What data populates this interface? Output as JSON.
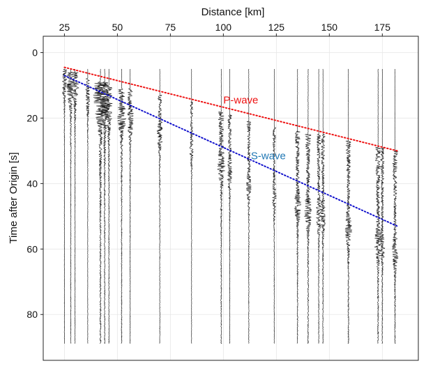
{
  "chart_data": {
    "type": "line",
    "xlabel": "Distance [km]",
    "ylabel": "Time after Origin [s]",
    "xlim": [
      15,
      192
    ],
    "ylim": [
      94,
      -5
    ],
    "x_axis_position": "top",
    "y_axis_inverted": true,
    "x_ticks": [
      25,
      50,
      75,
      100,
      125,
      150,
      175
    ],
    "y_ticks": [
      0,
      20,
      40,
      60,
      80
    ],
    "grid": true,
    "time_range": [
      5,
      89
    ],
    "stations": [
      {
        "distance": 25,
        "onset": 5,
        "amplitude": 2.5,
        "decay": 8
      },
      {
        "distance": 28,
        "onset": 6,
        "amplitude": 4.0,
        "decay": 9
      },
      {
        "distance": 30,
        "onset": 6,
        "amplitude": 3.5,
        "decay": 9
      },
      {
        "distance": 36,
        "onset": 8,
        "amplitude": 2.0,
        "decay": 10
      },
      {
        "distance": 42,
        "onset": 9,
        "amplitude": 7.5,
        "decay": 13
      },
      {
        "distance": 44,
        "onset": 9,
        "amplitude": 5.0,
        "decay": 12
      },
      {
        "distance": 46,
        "onset": 10,
        "amplitude": 4.0,
        "decay": 12
      },
      {
        "distance": 52,
        "onset": 11,
        "amplitude": 4.5,
        "decay": 12
      },
      {
        "distance": 56,
        "onset": 11,
        "amplitude": 3.5,
        "decay": 12
      },
      {
        "distance": 70,
        "onset": 13,
        "amplitude": 3.0,
        "decay": 14
      },
      {
        "distance": 85,
        "onset": 15,
        "amplitude": 2.0,
        "decay": 14
      },
      {
        "distance": 99,
        "onset": 18,
        "amplitude": 4.5,
        "decay": 15
      },
      {
        "distance": 103,
        "onset": 19,
        "amplitude": 3.0,
        "decay": 15
      },
      {
        "distance": 112,
        "onset": 21,
        "amplitude": 3.0,
        "decay": 16
      },
      {
        "distance": 124,
        "onset": 23,
        "amplitude": 2.5,
        "decay": 16
      },
      {
        "distance": 135,
        "onset": 24,
        "amplitude": 4.0,
        "decay": 18
      },
      {
        "distance": 140,
        "onset": 25,
        "amplitude": 4.5,
        "decay": 18
      },
      {
        "distance": 145,
        "onset": 25,
        "amplitude": 3.0,
        "decay": 20
      },
      {
        "distance": 147,
        "onset": 25,
        "amplitude": 3.0,
        "decay": 22
      },
      {
        "distance": 159,
        "onset": 27,
        "amplitude": 4.0,
        "decay": 20
      },
      {
        "distance": 173,
        "onset": 29,
        "amplitude": 4.5,
        "decay": 22
      },
      {
        "distance": 175,
        "onset": 29,
        "amplitude": 3.0,
        "decay": 24
      },
      {
        "distance": 181,
        "onset": 30,
        "amplitude": 4.0,
        "decay": 20
      }
    ],
    "series": [
      {
        "name": "P-wave",
        "color": "#ee1111",
        "style": "dotted",
        "x": [
          25,
          182
        ],
        "y": [
          4.5,
          30
        ]
      },
      {
        "name": "S-wave",
        "color": "#1111cc",
        "style": "dotted",
        "x": [
          25,
          182
        ],
        "y": [
          7,
          53
        ]
      }
    ],
    "annotations": [
      {
        "text": "P-wave",
        "x": 100,
        "y": 14.5,
        "color": "#ee1111"
      },
      {
        "text": "S-wave",
        "x": 113,
        "y": 31.5,
        "color": "#1f77b4"
      }
    ]
  }
}
